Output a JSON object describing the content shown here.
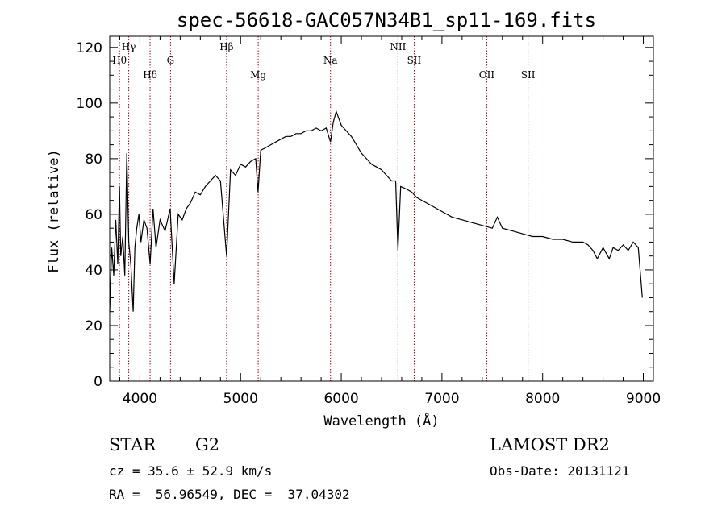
{
  "chart_data": {
    "type": "line",
    "title": "spec-56618-GAC057N34B1_sp11-169.fits",
    "xlabel": "Wavelength (Å)",
    "ylabel": "Flux (relative)",
    "xlim": [
      3700,
      9100
    ],
    "ylim": [
      0,
      124
    ],
    "xticks": [
      4000,
      5000,
      6000,
      7000,
      8000,
      9000
    ],
    "xtick_labels": [
      "4000",
      "5000",
      "6000",
      "7000",
      "8000",
      "9000"
    ],
    "yticks": [
      0,
      20,
      40,
      60,
      80,
      100,
      120
    ],
    "ytick_labels": [
      "0",
      "20",
      "40",
      "60",
      "80",
      "100",
      "120"
    ],
    "grid": false,
    "series": [
      {
        "x": [
          3700,
          3720,
          3740,
          3760,
          3780,
          3797,
          3810,
          3830,
          3850,
          3870,
          3889,
          3910,
          3933,
          3950,
          3968,
          3990,
          4010,
          4040,
          4070,
          4101,
          4130,
          4160,
          4200,
          4250,
          4300,
          4340,
          4380,
          4420,
          4460,
          4500,
          4550,
          4600,
          4650,
          4700,
          4750,
          4800,
          4861,
          4900,
          4950,
          5000,
          5050,
          5100,
          5150,
          5173,
          5200,
          5250,
          5300,
          5350,
          5400,
          5450,
          5500,
          5550,
          5600,
          5650,
          5700,
          5750,
          5800,
          5850,
          5893,
          5920,
          5950,
          5970,
          6000,
          6050,
          6100,
          6150,
          6200,
          6250,
          6300,
          6350,
          6400,
          6450,
          6500,
          6540,
          6563,
          6590,
          6650,
          6700,
          6750,
          6800,
          6900,
          7000,
          7100,
          7200,
          7300,
          7400,
          7500,
          7550,
          7600,
          7700,
          7800,
          7900,
          8000,
          8100,
          8200,
          8300,
          8400,
          8450,
          8500,
          8542,
          8600,
          8662,
          8700,
          8750,
          8800,
          8850,
          8900,
          8950,
          8990
        ],
        "y": [
          25,
          48,
          38,
          58,
          42,
          70,
          45,
          52,
          38,
          82,
          50,
          42,
          25,
          48,
          55,
          60,
          50,
          58,
          55,
          42,
          62,
          48,
          58,
          54,
          62,
          35,
          60,
          58,
          62,
          64,
          68,
          67,
          70,
          72,
          74,
          72,
          45,
          76,
          74,
          78,
          77,
          79,
          80,
          68,
          83,
          84,
          85,
          86,
          87,
          88,
          88,
          89,
          89,
          90,
          90,
          91,
          90,
          91,
          86,
          93,
          97,
          95,
          92,
          90,
          88,
          85,
          82,
          80,
          78,
          77,
          76,
          74,
          72,
          72,
          47,
          70,
          69,
          68,
          66,
          65,
          63,
          61,
          59,
          58,
          57,
          56,
          55,
          59,
          55,
          54,
          53,
          52,
          52,
          51,
          51,
          50,
          50,
          49,
          47,
          44,
          48,
          44,
          48,
          47,
          49,
          47,
          50,
          48,
          30
        ]
      }
    ],
    "annotations": [
      {
        "label": "Hγ",
        "x": 3889,
        "row": 1
      },
      {
        "label": "Hθ",
        "x": 3797,
        "row": 2
      },
      {
        "label": "Hδ",
        "x": 4101,
        "row": 3
      },
      {
        "label": "G",
        "x": 4304,
        "row": 2
      },
      {
        "label": "Hβ",
        "x": 4861,
        "row": 1
      },
      {
        "label": "Mg",
        "x": 5175,
        "row": 3
      },
      {
        "label": "Na",
        "x": 5893,
        "row": 2
      },
      {
        "label": "NII",
        "x": 6563,
        "row": 1
      },
      {
        "label": "SII",
        "x": 6724,
        "row": 2
      },
      {
        "label": "OII",
        "x": 7445,
        "row": 3
      },
      {
        "label": "SII",
        "x": 7855,
        "row": 3
      }
    ],
    "colors": {
      "spectrum": "#000000",
      "lines": "#b00000"
    }
  },
  "info": {
    "type_label": "STAR",
    "subclass": "G2",
    "survey": "LAMOST DR2",
    "cz": "cz = 35.6 ± 52.9 km/s",
    "obs_date": "Obs-Date: 20131121",
    "coords": "RA =  56.96549, DEC =  37.04302"
  }
}
